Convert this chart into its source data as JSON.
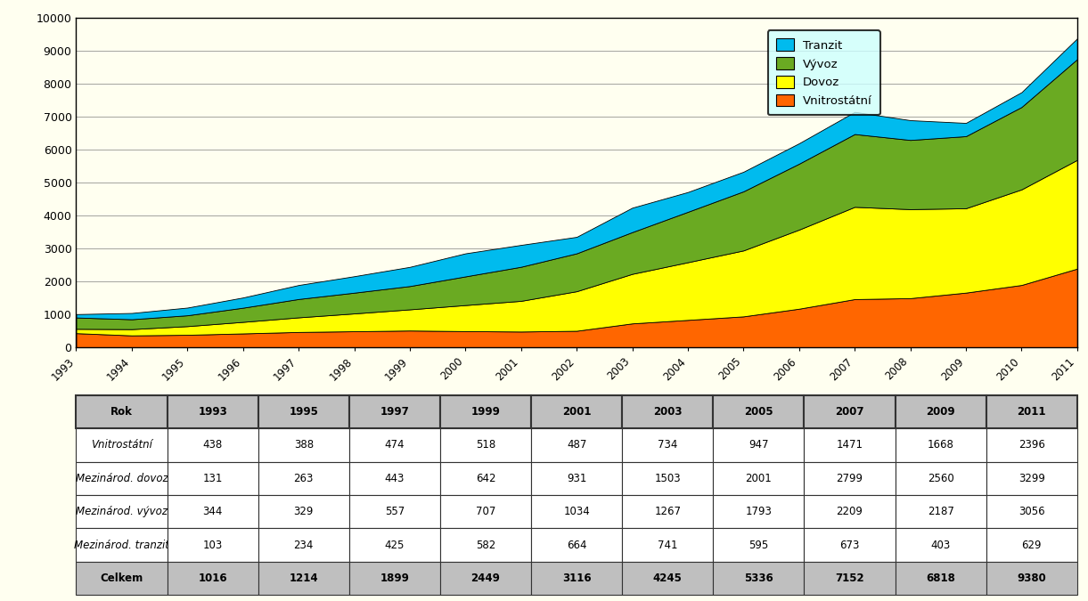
{
  "years": [
    1993,
    1994,
    1995,
    1996,
    1997,
    1998,
    1999,
    2000,
    2001,
    2002,
    2003,
    2004,
    2005,
    2006,
    2007,
    2008,
    2009,
    2010,
    2011
  ],
  "vnitrostatni": [
    438,
    370,
    388,
    430,
    474,
    496,
    518,
    500,
    487,
    510,
    734,
    840,
    947,
    1180,
    1471,
    1500,
    1668,
    1900,
    2396
  ],
  "dovoz": [
    131,
    190,
    263,
    350,
    443,
    540,
    642,
    790,
    931,
    1200,
    1503,
    1750,
    2001,
    2400,
    2799,
    2700,
    2560,
    2900,
    3299
  ],
  "vyvoz": [
    344,
    300,
    329,
    430,
    557,
    630,
    707,
    870,
    1034,
    1150,
    1267,
    1530,
    1793,
    2000,
    2209,
    2100,
    2187,
    2500,
    3056
  ],
  "tranzit": [
    103,
    190,
    234,
    310,
    425,
    500,
    582,
    700,
    664,
    500,
    741,
    600,
    595,
    620,
    673,
    600,
    403,
    450,
    629
  ],
  "color_vnitrostatni": "#FF6600",
  "color_dovoz": "#FFFF00",
  "color_vyvoz": "#6AAA22",
  "color_tranzit": "#00BBEE",
  "ylim": [
    0,
    10000
  ],
  "yticks": [
    0,
    1000,
    2000,
    3000,
    4000,
    5000,
    6000,
    7000,
    8000,
    9000,
    10000
  ],
  "chart_bg": "#FFFFF0",
  "outer_bg": "#FFFFF0",
  "legend_bg": "#CCFFFF",
  "table_years": [
    1993,
    1995,
    1997,
    1999,
    2001,
    2003,
    2005,
    2007,
    2009,
    2011
  ],
  "table_vnitrostatni": [
    438,
    388,
    474,
    518,
    487,
    734,
    947,
    1471,
    1668,
    2396
  ],
  "table_dovoz": [
    131,
    263,
    443,
    642,
    931,
    1503,
    2001,
    2799,
    2560,
    3299
  ],
  "table_vyvoz": [
    344,
    329,
    557,
    707,
    1034,
    1267,
    1793,
    2209,
    2187,
    3056
  ],
  "table_tranzit": [
    103,
    234,
    425,
    582,
    664,
    741,
    595,
    673,
    403,
    629
  ],
  "table_celkem": [
    1016,
    1214,
    1899,
    2449,
    3116,
    4245,
    5336,
    7152,
    6818,
    9380
  ]
}
